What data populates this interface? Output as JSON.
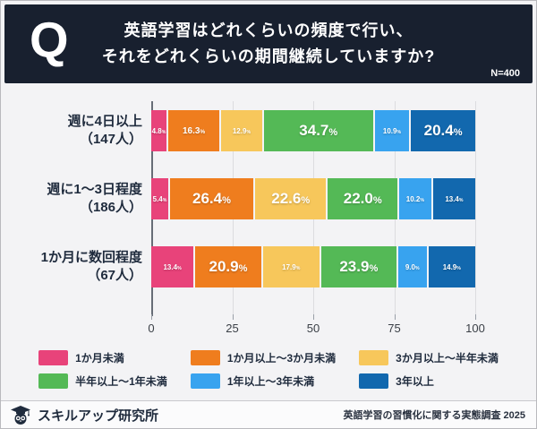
{
  "header": {
    "q_mark": "Q",
    "title_line1": "英語学習はどれくらいの頻度で行い、",
    "title_line2": "それをどれくらいの期間継続していますか?",
    "sample_label": "N=400"
  },
  "chart_data": {
    "type": "bar",
    "variant": "horizontal-stacked",
    "unit": "%",
    "xlim": [
      0,
      100
    ],
    "x_ticks": [
      0,
      25,
      50,
      75,
      100
    ],
    "grid": true,
    "series_labels": [
      "1か月未満",
      "1か月以上〜3か月未満",
      "3か月以上〜半年未満",
      "半年以上〜1年未満",
      "1年以上〜3年未満",
      "3年以上"
    ],
    "series_colors": [
      "#e8437a",
      "#ef7d1e",
      "#f7c75b",
      "#54b956",
      "#38a3ef",
      "#1268ae"
    ],
    "categories": [
      {
        "label": "週に4日以上",
        "count_label": "（147人）"
      },
      {
        "label": "週に1〜3日程度",
        "count_label": "（186人）"
      },
      {
        "label": "1か月に数回程度",
        "count_label": "（67人）"
      }
    ],
    "rows": [
      {
        "values": [
          4.8,
          16.3,
          12.9,
          34.7,
          10.9,
          20.4
        ],
        "label_sizes": [
          "sm",
          "md",
          "sm",
          "lg",
          "sm",
          "lg"
        ]
      },
      {
        "values": [
          5.4,
          26.4,
          22.6,
          22.0,
          10.2,
          13.4
        ],
        "label_sizes": [
          "sm",
          "lg",
          "lg",
          "lg",
          "sm",
          "sm"
        ]
      },
      {
        "values": [
          13.4,
          20.9,
          17.9,
          23.9,
          9.0,
          14.9
        ],
        "label_sizes": [
          "sm",
          "lg",
          "sm",
          "lg",
          "sm",
          "sm"
        ]
      }
    ],
    "legend_position": "bottom"
  },
  "footer": {
    "brand": "スキルアップ研究所",
    "source": "英語学習の習慣化に関する実態調査 2025"
  },
  "colors": {
    "header_bg": "#18202f",
    "page_bg": "#f3f3f5",
    "text_navy": "#1f2b3d"
  }
}
